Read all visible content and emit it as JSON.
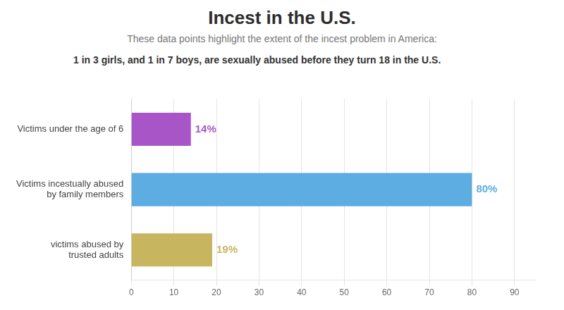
{
  "chart_data": {
    "type": "bar",
    "orientation": "horizontal",
    "title": "Incest in the U.S.",
    "subtitle": "These data points highlight the extent of the incest problem in America:",
    "annotations": [
      "1 in 3 girls, and 1 in 7 boys, are sexually abused before they turn 18 in the U.S."
    ],
    "categories": [
      "Victims under the age of 6",
      "Victims incestually abused\nby family members",
      "victims abused by\ntrusted adults"
    ],
    "values": [
      14,
      80,
      19
    ],
    "value_labels": [
      "14%",
      "80%",
      "19%"
    ],
    "colors": [
      "#a855c8",
      "#5dade2",
      "#c8b560"
    ],
    "xlim": [
      0,
      95
    ],
    "xticks": [
      0,
      10,
      20,
      30,
      40,
      50,
      60,
      70,
      80,
      90
    ],
    "grid": true,
    "data_labels": true
  }
}
